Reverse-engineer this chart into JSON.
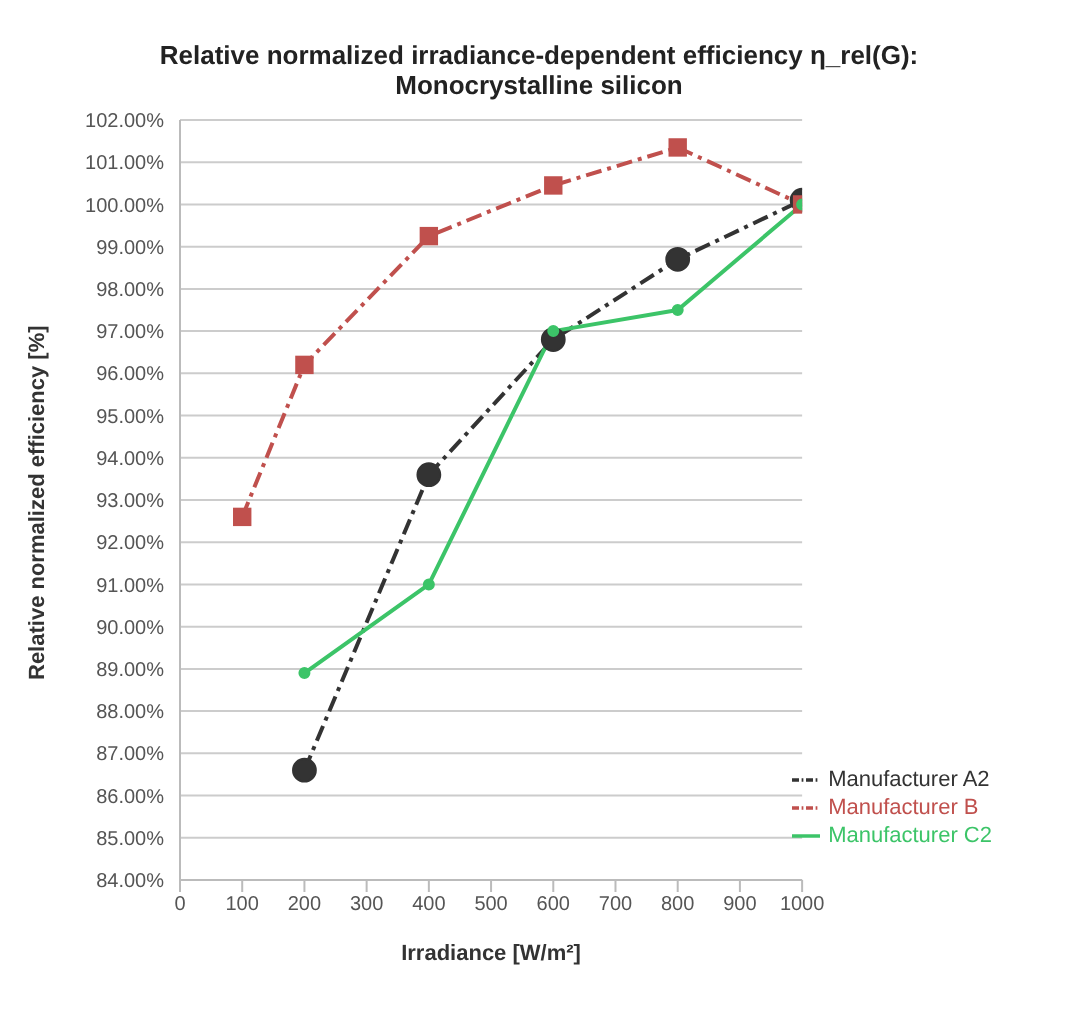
{
  "chart_data": {
    "type": "line",
    "title": "Relative normalized irradiance-dependent efficiency η_rel(G):\nMonocrystalline silicon",
    "xlabel": "Irradiance [W/m²]",
    "ylabel": "Relative normalized efficiency [%]",
    "xlim": [
      0,
      1000
    ],
    "xticks": [
      0,
      100,
      200,
      300,
      400,
      500,
      600,
      700,
      800,
      900,
      1000
    ],
    "ylim": [
      84,
      102
    ],
    "yticks": [
      {
        "value": 84,
        "label": "84.00%"
      },
      {
        "value": 85,
        "label": "85.00%"
      },
      {
        "value": 86,
        "label": "86.00%"
      },
      {
        "value": 87,
        "label": "87.00%"
      },
      {
        "value": 88,
        "label": "88.00%"
      },
      {
        "value": 89,
        "label": "89.00%"
      },
      {
        "value": 90,
        "label": "90.00%"
      },
      {
        "value": 91,
        "label": "91.00%"
      },
      {
        "value": 92,
        "label": "92.00%"
      },
      {
        "value": 93,
        "label": "93.00%"
      },
      {
        "value": 94,
        "label": "94.00%"
      },
      {
        "value": 95,
        "label": "95.00%"
      },
      {
        "value": 96,
        "label": "96.00%"
      },
      {
        "value": 97,
        "label": "97.00%"
      },
      {
        "value": 98,
        "label": "98.00%"
      },
      {
        "value": 99,
        "label": "99.00%"
      },
      {
        "value": 100,
        "label": "100.00%"
      },
      {
        "value": 101,
        "label": "101.00%"
      },
      {
        "value": 102,
        "label": "102.00%"
      }
    ],
    "grid": "y",
    "legend": "bottom right",
    "series": [
      {
        "name": "Manufacturer A2",
        "color": "#333333",
        "marker": "circle",
        "line_style": "dashed",
        "x": [
          200,
          400,
          600,
          800,
          1000
        ],
        "values": [
          86.6,
          93.6,
          96.8,
          98.7,
          100.1
        ]
      },
      {
        "name": "Manufacturer B",
        "color": "#c0504d",
        "marker": "square",
        "line_style": "dashed",
        "x": [
          100,
          200,
          400,
          600,
          800,
          1000
        ],
        "values": [
          92.6,
          96.2,
          99.25,
          100.45,
          101.35,
          100.0
        ]
      },
      {
        "name": "Manufacturer C2",
        "color": "#3cc468",
        "marker": "circle",
        "line_style": "solid",
        "x": [
          200,
          400,
          600,
          800,
          1000
        ],
        "values": [
          88.9,
          91.0,
          97.0,
          97.5,
          100.0
        ]
      }
    ]
  }
}
